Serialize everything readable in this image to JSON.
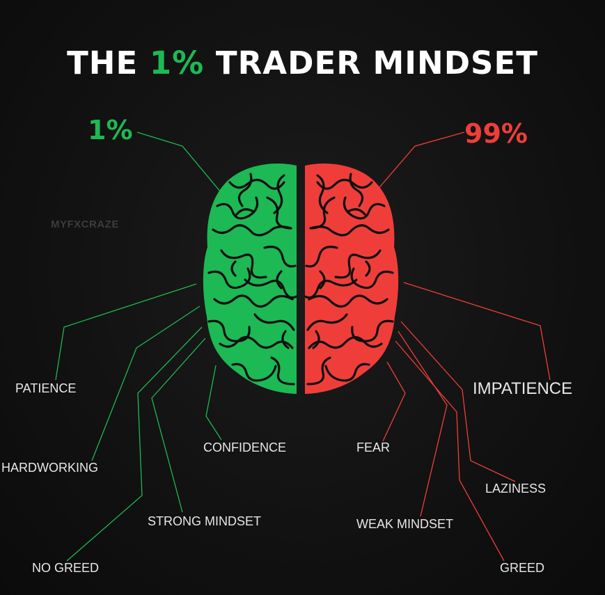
{
  "title": {
    "prefix": "THE ",
    "accent": "1%",
    "suffix": " TRADER MINDSET"
  },
  "watermark": "MYFXCRAZE",
  "left_side": {
    "percent": "1%",
    "color": "#1db954",
    "traits": [
      "PATIENCE",
      "HARDWORKING",
      "NO GREED",
      "STRONG MINDSET",
      "CONFIDENCE"
    ]
  },
  "right_side": {
    "percent": "99%",
    "color": "#ef3e3a",
    "traits": [
      "IMPATIENCE",
      "FEAR",
      "LAZINESS",
      "WEAK MINDSET",
      "GREED"
    ]
  },
  "icons": {
    "brain": "brain-icon"
  }
}
